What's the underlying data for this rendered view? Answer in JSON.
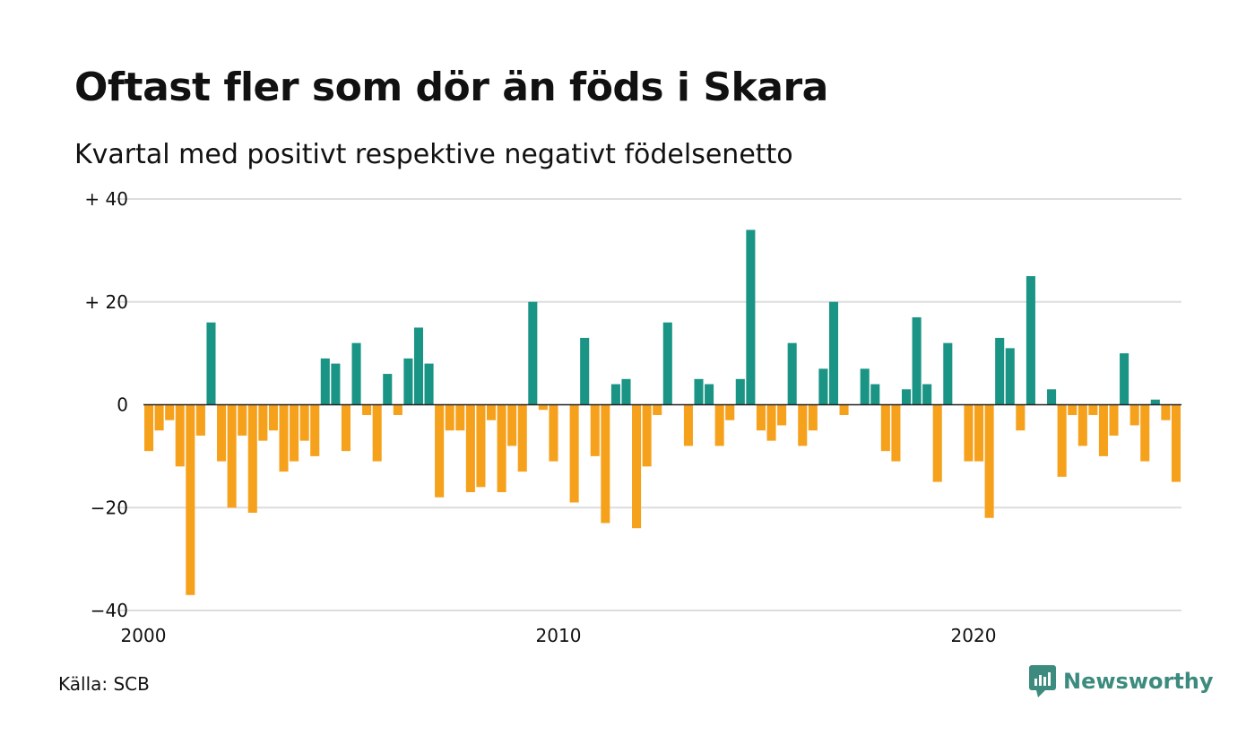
{
  "title": "Oftast fler som dör än föds i Skara",
  "subtitle": "Kvartal med positivt respektive negativt födelsenetto",
  "source": "Källa: SCB",
  "brand": {
    "name": "Newsworthy",
    "icon": "newsworthy-logo-icon",
    "color": "#3c8b7e"
  },
  "chart_data": {
    "type": "bar",
    "x_start_year": 2000,
    "x_start_quarter": 1,
    "values": [
      -9,
      -5,
      -3,
      -12,
      -37,
      -6,
      16,
      -11,
      -20,
      -6,
      -21,
      -7,
      -5,
      -13,
      -11,
      -7,
      -10,
      9,
      8,
      -9,
      12,
      -2,
      -11,
      6,
      -2,
      9,
      15,
      8,
      -18,
      -5,
      -5,
      -17,
      -16,
      -3,
      -17,
      -8,
      -13,
      20,
      -1,
      -11,
      0,
      -19,
      13,
      -10,
      -23,
      4,
      5,
      -24,
      -12,
      -2,
      16,
      0,
      -8,
      5,
      4,
      -8,
      -3,
      5,
      34,
      -5,
      -7,
      -4,
      12,
      -8,
      -5,
      7,
      20,
      -2,
      0,
      7,
      4,
      -9,
      -11,
      3,
      17,
      4,
      -15,
      12,
      0,
      -11,
      -11,
      -22,
      13,
      11,
      -5,
      25,
      0,
      3,
      -14,
      -2,
      -8,
      -2,
      -10,
      -6,
      10,
      -4,
      -11,
      1,
      -3,
      -15
    ],
    "ylim": [
      -40,
      40
    ],
    "y_ticks": [
      {
        "value": 40,
        "label": "+ 40"
      },
      {
        "value": 20,
        "label": "+ 20"
      },
      {
        "value": 0,
        "label": "0"
      },
      {
        "value": -20,
        "label": "−20"
      },
      {
        "value": -40,
        "label": "−40"
      }
    ],
    "x_ticks": [
      {
        "year": 2000,
        "label": "2000"
      },
      {
        "year": 2010,
        "label": "2010"
      },
      {
        "year": 2020,
        "label": "2020"
      }
    ],
    "positive_color": "#1a9484",
    "negative_color": "#f6a11c",
    "grid": true
  }
}
